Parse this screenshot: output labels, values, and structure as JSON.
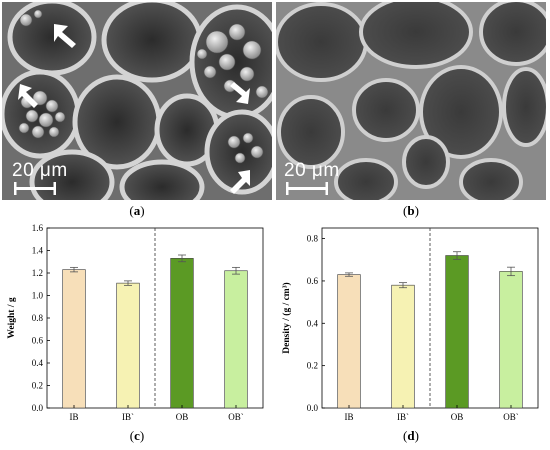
{
  "panels": {
    "a": {
      "label": "a",
      "scale_text": "20 μm"
    },
    "b": {
      "label": "b",
      "scale_text": "20 μm"
    },
    "c": {
      "label": "c"
    },
    "d": {
      "label": "d"
    }
  },
  "colors": {
    "IB": "#f7dfb9",
    "IB_prime": "#f6f2b3",
    "OB": "#5b9a24",
    "OB_prime": "#c8ef9f",
    "bar_edge": "#3a3a3a"
  },
  "chart_data": [
    {
      "type": "bar",
      "title": "",
      "xlabel": "",
      "ylabel": "Weight / g",
      "categories": [
        "IB",
        "IB`",
        "OB",
        "OB`"
      ],
      "values": [
        1.23,
        1.11,
        1.33,
        1.22
      ],
      "errors": [
        0.02,
        0.02,
        0.03,
        0.03
      ],
      "ylim": [
        0,
        1.6
      ],
      "yticks": [
        0,
        0.2,
        0.4,
        0.6,
        0.8,
        1.0,
        1.2,
        1.4,
        1.6
      ],
      "ytick_labels": [
        "0.0",
        "0.2",
        "0.4",
        "0.6",
        "0.8",
        "1.0",
        "1.2",
        "1.4",
        "1.6"
      ],
      "divider_between": [
        1,
        2
      ],
      "grid": false
    },
    {
      "type": "bar",
      "title": "",
      "xlabel": "",
      "ylabel": "Density / (g / cm³)",
      "categories": [
        "IB",
        "IB`",
        "OB",
        "OB`"
      ],
      "values": [
        0.63,
        0.58,
        0.72,
        0.645
      ],
      "errors": [
        0.008,
        0.012,
        0.018,
        0.02
      ],
      "ylim": [
        0,
        0.85
      ],
      "yticks": [
        0,
        0.2,
        0.4,
        0.6,
        0.8
      ],
      "ytick_labels": [
        "0.0",
        "0.2",
        "0.4",
        "0.6",
        "0.8"
      ],
      "divider_between": [
        1,
        2
      ],
      "grid": false
    }
  ]
}
